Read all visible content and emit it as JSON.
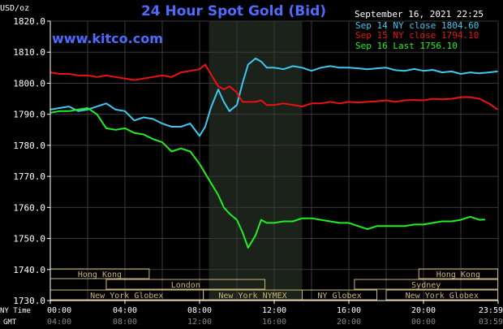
{
  "chart_data": {
    "type": "line",
    "title": "24 Hour Spot Gold (Bid)",
    "unit_label": "USD/oz",
    "watermark": "www.kitco.com",
    "date_label": "September 16, 2021 22:25",
    "ylim": [
      1730,
      1820
    ],
    "xlim": [
      0,
      24
    ],
    "yticks": [
      "1820.0",
      "1810.0",
      "1800.0",
      "1790.0",
      "1780.0",
      "1770.0",
      "1760.0",
      "1750.0",
      "1740.0",
      "1730.0"
    ],
    "xticks_ny": [
      "00:00",
      "04:00",
      "08:00",
      "12:00",
      "16:00",
      "20:00",
      "23:59"
    ],
    "xticks_gmt": [
      "04:00",
      "08:00",
      "12:00",
      "16:00",
      "20:00",
      "00:00",
      "03:59"
    ],
    "x_row_label_ny": "NY Time",
    "x_row_label_gmt": "GMT",
    "shaded_hours": [
      8.5,
      13.5
    ],
    "grid": true,
    "colors": {
      "background": "#000000",
      "grid": "#3a3a3a",
      "axis_text": "#ffffff",
      "title": "#4f6bff",
      "watermark": "#4f6bff",
      "shade": "#1a221a",
      "session_border": "#c8b478",
      "session_text": "#c8b478"
    },
    "legend_position": "top-right",
    "series": [
      {
        "name": "Sep 14 NY close 1804.60",
        "color": "#3ec8f0",
        "x": [
          0,
          0.5,
          1,
          1.5,
          2,
          2.5,
          3,
          3.5,
          4,
          4.5,
          5,
          5.5,
          6,
          6.5,
          7,
          7.5,
          8,
          8.3,
          8.6,
          9,
          9.3,
          9.6,
          10,
          10.3,
          10.6,
          11,
          11.3,
          11.6,
          12,
          12.5,
          13,
          13.5,
          14,
          14.5,
          15,
          15.5,
          16,
          16.5,
          17,
          17.5,
          18,
          18.5,
          19,
          19.5,
          20,
          20.5,
          21,
          21.5,
          22,
          22.5,
          23,
          23.5,
          23.98
        ],
        "y": [
          1791.5,
          1792,
          1792.5,
          1791,
          1791.5,
          1792.5,
          1793.5,
          1791.5,
          1791,
          1788,
          1789,
          1788.5,
          1787,
          1786,
          1786,
          1787,
          1783,
          1786,
          1792,
          1798,
          1794,
          1791,
          1793,
          1800,
          1806,
          1808,
          1807,
          1805,
          1805,
          1804.5,
          1805.5,
          1805,
          1804,
          1805,
          1805.5,
          1805,
          1805,
          1804.8,
          1804.5,
          1804.8,
          1805,
          1804.2,
          1804,
          1804.6,
          1804,
          1804.3,
          1803.5,
          1803.8,
          1803,
          1803.5,
          1803.2,
          1803.5,
          1803.8
        ]
      },
      {
        "name": "Sep 15 NY close 1794.10",
        "color": "#ee1111",
        "x": [
          0,
          0.5,
          1,
          1.5,
          2,
          2.5,
          3,
          3.5,
          4,
          4.5,
          5,
          5.5,
          6,
          6.5,
          7,
          7.5,
          8,
          8.3,
          8.6,
          9,
          9.3,
          9.6,
          10,
          10.3,
          10.6,
          11,
          11.3,
          11.6,
          12,
          12.5,
          13,
          13.5,
          14,
          14.5,
          15,
          15.5,
          16,
          16.5,
          17,
          17.5,
          18,
          18.5,
          19,
          19.5,
          20,
          20.5,
          21,
          21.5,
          22,
          22.5,
          23,
          23.5,
          23.98
        ],
        "y": [
          1803.5,
          1803,
          1803,
          1802.5,
          1802.5,
          1802,
          1802.5,
          1802,
          1801.5,
          1801,
          1801.5,
          1802,
          1802.5,
          1802,
          1803.5,
          1804,
          1804.5,
          1806,
          1803,
          1799,
          1798,
          1799,
          1797,
          1794,
          1794,
          1794,
          1794.5,
          1793,
          1793,
          1793.5,
          1793,
          1792.5,
          1793.5,
          1793.5,
          1794,
          1793.5,
          1794,
          1793.8,
          1794,
          1794.2,
          1794.5,
          1794,
          1794.5,
          1794.6,
          1794.5,
          1795,
          1794.8,
          1795,
          1795.5,
          1795.5,
          1795,
          1793.5,
          1791.5
        ]
      },
      {
        "name": "Sep 16 Last 1756.10",
        "color": "#22ee22",
        "x": [
          0,
          0.5,
          1,
          1.5,
          2,
          2.5,
          3,
          3.5,
          4,
          4.5,
          5,
          5.5,
          6,
          6.5,
          7,
          7.5,
          8,
          8.3,
          8.6,
          9,
          9.3,
          9.6,
          10,
          10.3,
          10.6,
          11,
          11.3,
          11.6,
          12,
          12.5,
          13,
          13.5,
          14,
          14.5,
          15,
          15.5,
          16,
          16.5,
          17,
          17.5,
          18,
          18.5,
          19,
          19.5,
          20,
          20.5,
          21,
          21.5,
          22,
          22.5,
          23,
          23.3
        ],
        "y": [
          1790.5,
          1791,
          1791,
          1791.5,
          1792,
          1790,
          1785.5,
          1785,
          1785.5,
          1784,
          1783.5,
          1782,
          1781,
          1778,
          1779,
          1778,
          1774,
          1771,
          1768,
          1764,
          1760,
          1758,
          1756,
          1752,
          1747,
          1751,
          1756,
          1755,
          1755,
          1755.5,
          1755.5,
          1756.5,
          1756.5,
          1756,
          1755.5,
          1755,
          1755,
          1754,
          1753,
          1754,
          1754,
          1754,
          1754,
          1754.5,
          1754.5,
          1755,
          1755.5,
          1755.5,
          1756,
          1757,
          1756,
          1756.1
        ]
      }
    ]
  },
  "sessions": [
    {
      "label": "Hong Kong",
      "row": 0,
      "start": 0,
      "end": 5.3
    },
    {
      "label": "Hong Kong",
      "row": 0,
      "start": 19.75,
      "end": 23.98
    },
    {
      "label": "London",
      "row": 1,
      "start": 3,
      "end": 11.5
    },
    {
      "label": "Sydney",
      "row": 1,
      "start": 16.3,
      "end": 23.98
    },
    {
      "label": "New York Globex",
      "row": 2,
      "start": 0,
      "end": 8.2
    },
    {
      "label": "New York NYMEX",
      "row": 2,
      "start": 8.2,
      "end": 13.5
    },
    {
      "label": "NY Globex",
      "row": 2,
      "start": 13.5,
      "end": 17.5
    },
    {
      "label": "New York Globex",
      "row": 2,
      "start": 18,
      "end": 23.98
    }
  ]
}
